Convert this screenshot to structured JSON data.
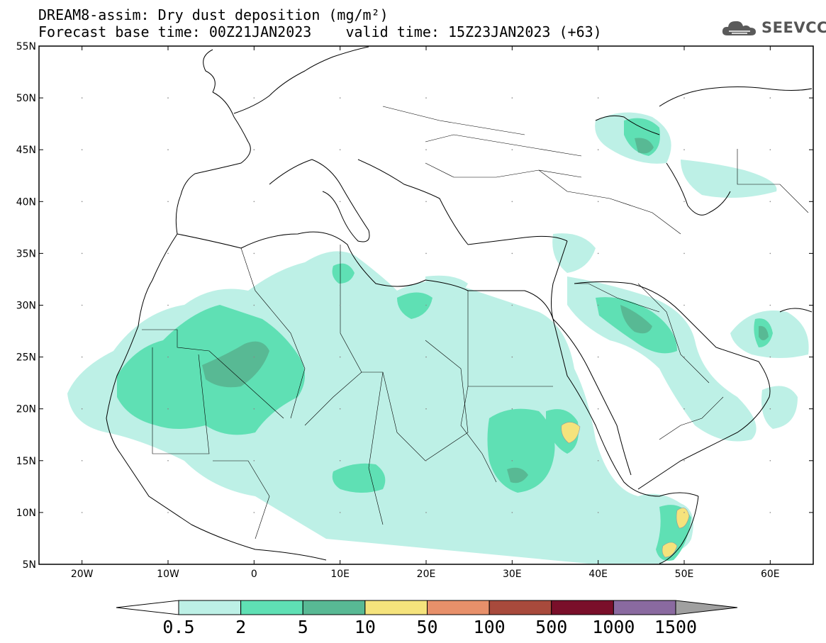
{
  "header": {
    "title_line1": "DREAM8-assim: Dry dust deposition (mg/m²)",
    "title_line2": "Forecast base time: 00Z21JAN2023    valid time: 15Z23JAN2023 (+63)"
  },
  "logo": {
    "text": "SEEVCCC",
    "icon": "cloud-icon"
  },
  "map": {
    "lat_labels": [
      "55N",
      "50N",
      "45N",
      "40N",
      "35N",
      "30N",
      "25N",
      "20N",
      "15N",
      "10N",
      "5N"
    ],
    "lon_labels": [
      "20W",
      "10W",
      "0",
      "10E",
      "20E",
      "30E",
      "40E",
      "50E",
      "60E"
    ]
  },
  "colorbar": {
    "labels": [
      "0.5",
      "2",
      "5",
      "10",
      "50",
      "100",
      "500",
      "1000",
      "1500"
    ],
    "colors": [
      "#ffffff",
      "#bdf0e6",
      "#5fe0b4",
      "#58b994",
      "#f5e37c",
      "#e8906a",
      "#a84a3c",
      "#7a0f2a",
      "#8a6aa0",
      "#a0a0a0"
    ]
  },
  "colors": {
    "shade_light": "#bdf0e6",
    "shade_mid": "#5fe0b4",
    "shade_dark": "#58b994",
    "shade_yellow": "#f5e37c"
  }
}
